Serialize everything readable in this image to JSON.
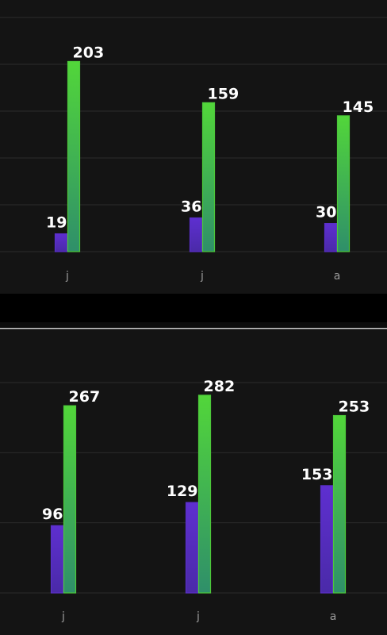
{
  "chart_data": [
    {
      "type": "bar",
      "categories": [
        "j",
        "j",
        "a"
      ],
      "series": [
        {
          "color": "#5a2fc8",
          "values": [
            19,
            36,
            30
          ]
        },
        {
          "color": "#4cc83a",
          "values": [
            203,
            159,
            145
          ]
        }
      ],
      "ylim": [
        0,
        250
      ],
      "yticks": [
        0,
        50,
        100,
        150,
        200,
        250
      ],
      "grid": true
    },
    {
      "type": "bar",
      "categories": [
        "j",
        "j",
        "a"
      ],
      "series": [
        {
          "color": "#5a2fc8",
          "values": [
            96,
            129,
            153
          ]
        },
        {
          "color": "#4cc83a",
          "values": [
            267,
            282,
            253
          ]
        }
      ],
      "ylim": [
        0,
        300
      ],
      "yticks": [
        0,
        100,
        200,
        300
      ],
      "grid": true
    }
  ]
}
